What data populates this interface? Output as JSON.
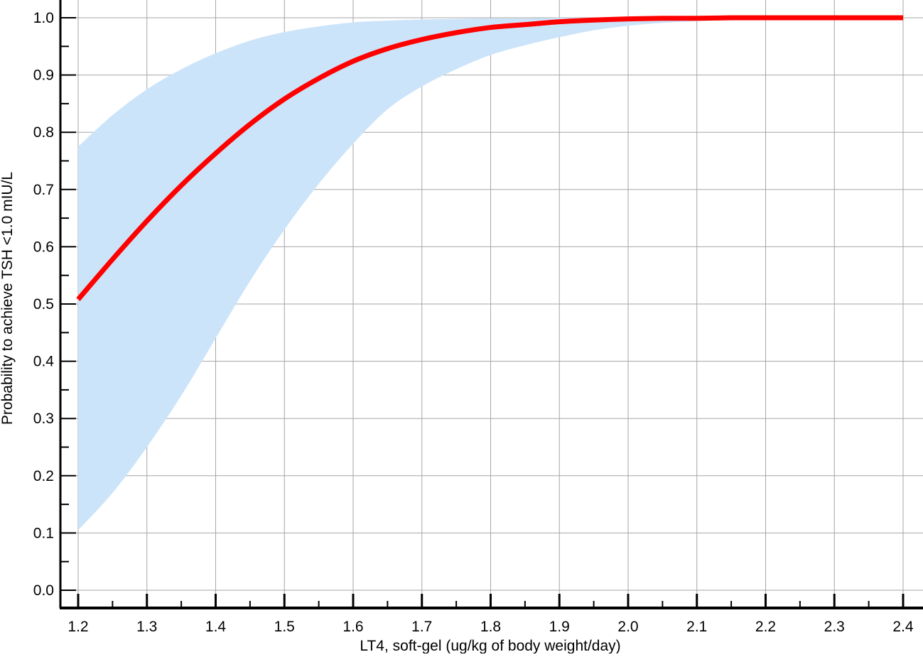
{
  "chart_data": {
    "type": "line",
    "title": "",
    "xlabel": "LT4, soft-gel (ug/kg of body weight/day)",
    "ylabel": "Probability to achieve TSH <1.0 mIU/L",
    "xlim": [
      1.2,
      2.4
    ],
    "ylim": [
      0.0,
      1.0
    ],
    "x_ticks": [
      "1.2",
      "1.3",
      "1.4",
      "1.5",
      "1.6",
      "1.7",
      "1.8",
      "1.9",
      "2.0",
      "2.1",
      "2.2",
      "2.3",
      "2.4"
    ],
    "y_ticks": [
      "0.0",
      "0.1",
      "0.2",
      "0.3",
      "0.4",
      "0.5",
      "0.6",
      "0.7",
      "0.8",
      "0.9",
      "1.0"
    ],
    "grid": true,
    "legend": "none",
    "colors": {
      "curve": "#ff0000",
      "confidence_band": "#cce4fa",
      "grid": "#a6a6a6",
      "axis": "#000000"
    },
    "series": [
      {
        "type": "line",
        "x": [
          1.2,
          1.25,
          1.3,
          1.35,
          1.4,
          1.45,
          1.5,
          1.55,
          1.6,
          1.65,
          1.7,
          1.75,
          1.8,
          1.85,
          1.9,
          1.95,
          2.0,
          2.05,
          2.1,
          2.15,
          2.2,
          2.25,
          2.3,
          2.35,
          2.4
        ],
        "y": [
          0.508,
          0.578,
          0.645,
          0.707,
          0.763,
          0.814,
          0.858,
          0.894,
          0.924,
          0.946,
          0.962,
          0.974,
          0.983,
          0.988,
          0.993,
          0.996,
          0.998,
          0.999,
          0.999,
          1.0,
          1.0,
          1.0,
          1.0,
          1.0,
          1.0
        ]
      },
      {
        "type": "band",
        "x": [
          1.2,
          1.25,
          1.3,
          1.35,
          1.4,
          1.45,
          1.5,
          1.55,
          1.6,
          1.65,
          1.7,
          1.75,
          1.8,
          1.85,
          1.9,
          1.95,
          2.0,
          2.05,
          2.1,
          2.15,
          2.2,
          2.25,
          2.3,
          2.35,
          2.4
        ],
        "upper": [
          0.775,
          0.83,
          0.875,
          0.91,
          0.938,
          0.96,
          0.975,
          0.985,
          0.992,
          0.995,
          0.997,
          0.998,
          0.999,
          0.999,
          1.0,
          1.0,
          1.0,
          1.0,
          1.0,
          1.0,
          1.0,
          1.0,
          1.0,
          1.0,
          1.0
        ],
        "lower": [
          0.105,
          0.17,
          0.25,
          0.34,
          0.44,
          0.54,
          0.63,
          0.71,
          0.78,
          0.84,
          0.88,
          0.91,
          0.935,
          0.952,
          0.966,
          0.978,
          0.986,
          0.991,
          0.994,
          0.996,
          0.997,
          0.998,
          0.999,
          0.999,
          1.0
        ]
      }
    ]
  }
}
